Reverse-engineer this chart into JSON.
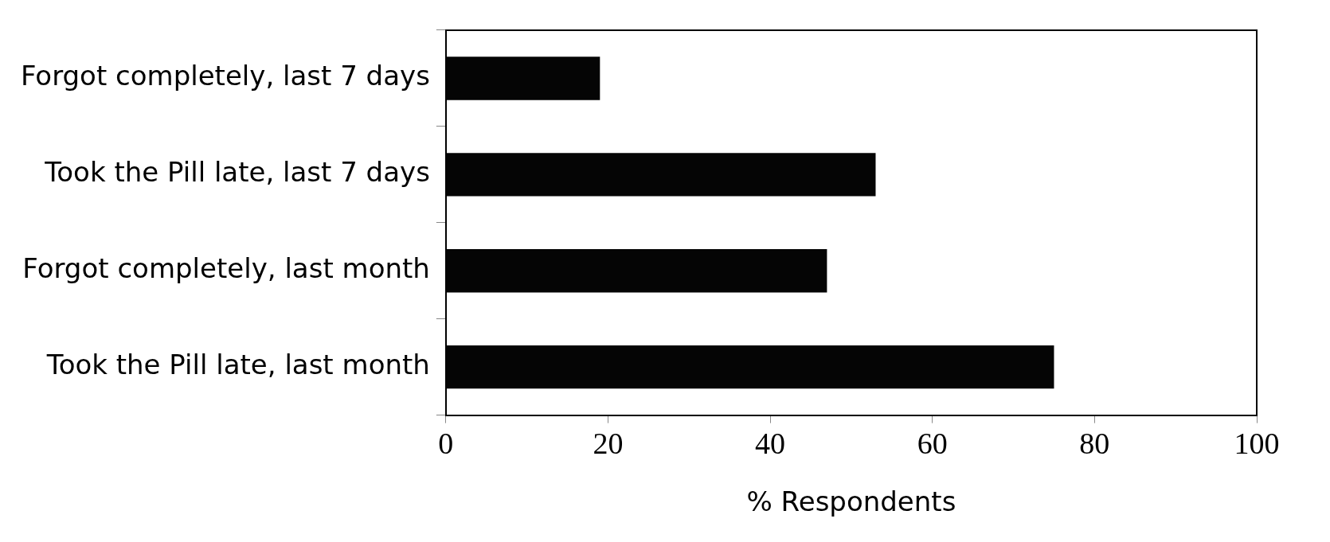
{
  "chart_data": {
    "type": "bar",
    "orientation": "horizontal",
    "xlabel": "% Respondents",
    "categories": [
      "Forgot completely, last 7 days",
      "Took the Pill late, last 7 days",
      "Forgot completely, last month",
      "Took the Pill late, last month"
    ],
    "values": [
      19,
      53,
      47,
      75
    ],
    "color": "#050505",
    "xlim": [
      0,
      100
    ],
    "xticks": [
      0,
      20,
      40,
      60,
      80,
      100
    ],
    "grid": false,
    "legend": false
  }
}
